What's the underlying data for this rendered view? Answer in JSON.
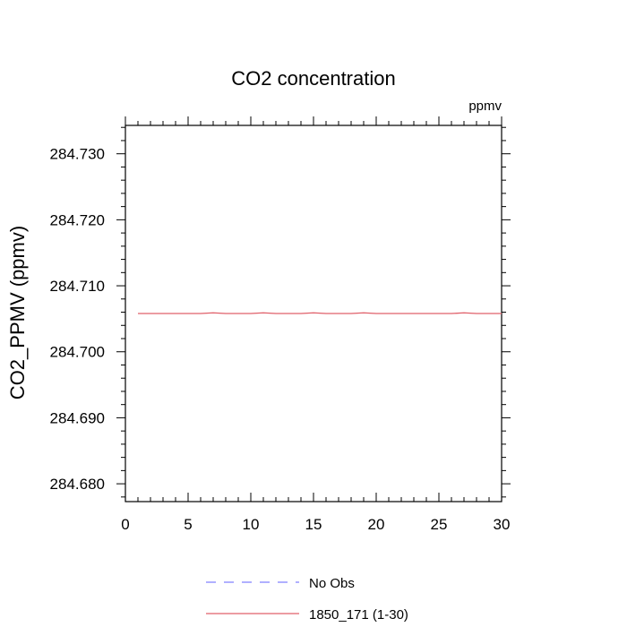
{
  "chart_data": {
    "type": "line",
    "title": "CO2 concentration",
    "units_label": "ppmv",
    "xlabel": "",
    "ylabel": "CO2_PPMV  (ppmv)",
    "xlim": [
      0,
      30
    ],
    "ylim": [
      284.6773,
      284.7343
    ],
    "x_ticks": [
      0,
      5,
      10,
      15,
      20,
      25,
      30
    ],
    "x_tick_labels": [
      "0",
      "5",
      "10",
      "15",
      "20",
      "25",
      "30"
    ],
    "y_ticks": [
      284.68,
      284.69,
      284.7,
      284.71,
      284.72,
      284.73
    ],
    "y_tick_labels": [
      "284.680",
      "284.690",
      "284.700",
      "284.710",
      "284.720",
      "284.730"
    ],
    "grid": false,
    "legend_position": "bottom-center",
    "series": [
      {
        "name": "No Obs",
        "color": "#8080ff",
        "dashed": true,
        "x": [],
        "values": []
      },
      {
        "name": "1850_171 (1-30)",
        "color": "#e0606a",
        "dashed": false,
        "x": [
          1,
          2,
          3,
          4,
          5,
          6,
          7,
          8,
          9,
          10,
          11,
          12,
          13,
          14,
          15,
          16,
          17,
          18,
          19,
          20,
          21,
          22,
          23,
          24,
          25,
          26,
          27,
          28,
          29,
          30
        ],
        "values": [
          284.7058,
          284.7058,
          284.7058,
          284.7058,
          284.7058,
          284.7058,
          284.7059,
          284.7058,
          284.7058,
          284.7058,
          284.7059,
          284.7058,
          284.7058,
          284.7058,
          284.7059,
          284.7058,
          284.7058,
          284.7058,
          284.7059,
          284.7058,
          284.7058,
          284.7058,
          284.7058,
          284.7058,
          284.7058,
          284.7058,
          284.7059,
          284.7058,
          284.7058,
          284.7058
        ]
      }
    ]
  }
}
